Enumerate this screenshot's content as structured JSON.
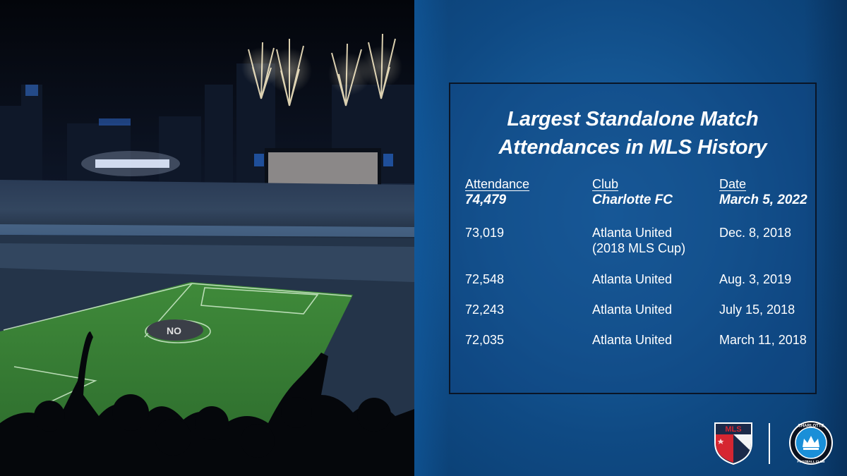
{
  "title_line1": "Largest Standalone Match",
  "title_line2": "Attendances in MLS History",
  "columns": {
    "attendance": "Attendance",
    "club": "Club",
    "date": "Date"
  },
  "rows": [
    {
      "attendance": "74,479",
      "club": "Charlotte FC",
      "club_line2": "",
      "date": "March 5, 2022",
      "highlight": true
    },
    {
      "attendance": "73,019",
      "club": "Atlanta United",
      "club_line2": "(2018 MLS Cup)",
      "date": "Dec. 8, 2018",
      "highlight": false
    },
    {
      "attendance": "72,548",
      "club": "Atlanta United",
      "club_line2": "",
      "date": "Aug. 3, 2019",
      "highlight": false
    },
    {
      "attendance": "72,243",
      "club": "Atlanta United",
      "club_line2": "",
      "date": "July 15, 2018",
      "highlight": false
    },
    {
      "attendance": "72,035",
      "club": "Atlanta United",
      "club_line2": "",
      "date": "March 11, 2018",
      "highlight": false
    }
  ],
  "logos": {
    "mls_text": "MLS",
    "charlotte_text_top": "CHARLOTTE",
    "charlotte_text_bottom": "FOOTBALL CLUB"
  },
  "colors": {
    "panel_blue": "#155794",
    "mls_red": "#d62631",
    "mls_navy": "#1b2a4a"
  }
}
